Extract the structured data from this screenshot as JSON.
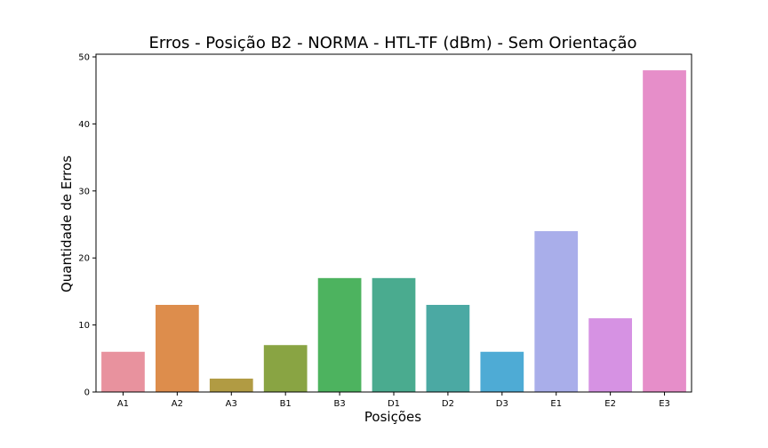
{
  "chart_data": {
    "type": "bar",
    "title": "Erros - Posição B2 - NORMA - HTL-TF (dBm) - Sem Orientação",
    "xlabel": "Posições",
    "ylabel": "Quantidade de Erros",
    "categories": [
      "A1",
      "A2",
      "A3",
      "B1",
      "B3",
      "D1",
      "D2",
      "D3",
      "E1",
      "E2",
      "E3"
    ],
    "values": [
      6,
      13,
      2,
      7,
      17,
      17,
      13,
      6,
      24,
      11,
      48
    ],
    "colors": [
      "#e8929e",
      "#dd8d4c",
      "#b19b43",
      "#89a443",
      "#4db35f",
      "#4aab8f",
      "#4ba9a3",
      "#4eabd5",
      "#a9aeea",
      "#d692e3",
      "#e68ec9"
    ],
    "ylim": [
      0,
      50.4
    ],
    "yticks": [
      0,
      10,
      20,
      30,
      40,
      50
    ],
    "grid": false,
    "legend": "none"
  }
}
